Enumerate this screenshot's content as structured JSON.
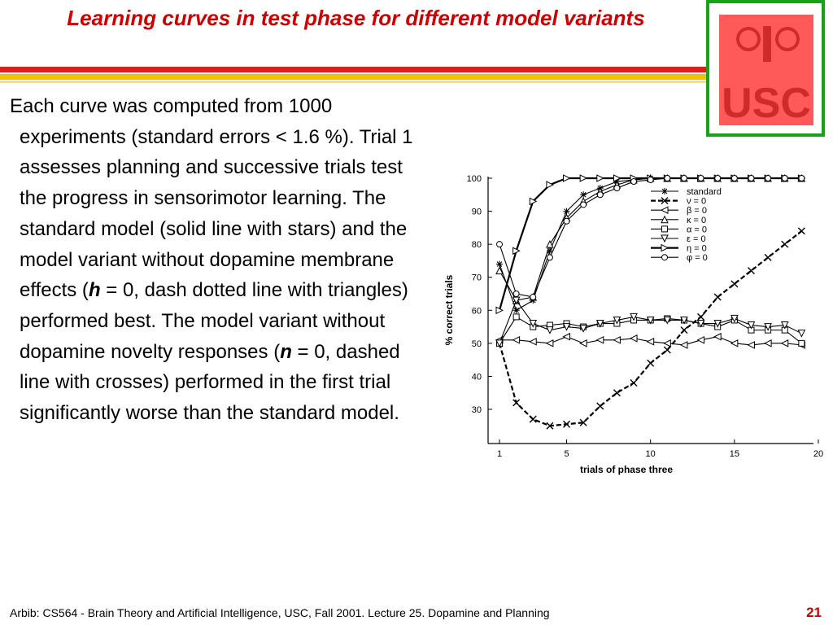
{
  "slide": {
    "title": "Learning curves in test phase for different model variants",
    "body_parts": [
      "Each curve was computed from 1000 experiments (standard errors < 1.6 %). Trial 1 assesses planning and successive trials test the progress in sensorimotor learning. The standard model (solid line with stars) and the model variant without dopamine membrane effects (",
      "h",
      " = 0, dash dotted line with triangles) performed best. The model variant without dopamine novelty responses (",
      "n",
      " = 0, dashed line with crosses) performed in the first trial significantly worse than the standard model."
    ],
    "footer": "Arbib: CS564 - Brain Theory and Artificial Intelligence,  USC, Fall 2001. Lecture 25. Dopamine and Planning",
    "page_number": "21",
    "logo_text": "USC",
    "colors": {
      "title": "#cc0000",
      "logo_border": "#1aa11a",
      "logo_fill": "#ff5a5a",
      "rule_top": "#e41b1b",
      "rule_bottom": "#f2c200"
    }
  },
  "chart_data": {
    "type": "line",
    "xlabel": "trials of phase three",
    "ylabel": "% correct trials",
    "xlim": [
      0,
      20
    ],
    "ylim": [
      20,
      100
    ],
    "xticks": [
      1,
      5,
      10,
      15,
      20
    ],
    "yticks": [
      30,
      40,
      50,
      60,
      70,
      80,
      90,
      100
    ],
    "grid": false,
    "legend_position": "top-right",
    "x": [
      1,
      2,
      3,
      4,
      5,
      6,
      7,
      8,
      9,
      10,
      11,
      12,
      13,
      14,
      15,
      16,
      17,
      18,
      19
    ],
    "series": [
      {
        "name": "standard",
        "marker": "star",
        "values": [
          74,
          60,
          63,
          78,
          90,
          95,
          97,
          99,
          99.5,
          100,
          100,
          100,
          100,
          100,
          100,
          100,
          100,
          100,
          100
        ]
      },
      {
        "name": "ν = 0",
        "marker": "cross",
        "values": [
          50,
          32,
          27,
          25,
          25.5,
          26,
          31,
          35,
          38,
          44,
          48,
          54,
          58,
          64,
          68,
          72,
          76,
          80,
          84
        ]
      },
      {
        "name": "β = 0",
        "marker": "tri-left",
        "values": [
          51,
          51,
          50.5,
          50,
          52,
          50,
          51,
          51,
          51.5,
          50.5,
          50,
          49.5,
          51,
          52,
          50,
          49.5,
          50,
          50,
          49.5
        ]
      },
      {
        "name": "κ = 0",
        "marker": "tri-up",
        "values": [
          72,
          63,
          64,
          80,
          88,
          93,
          96,
          98,
          99.5,
          100,
          100,
          100,
          100,
          100,
          100,
          100,
          100,
          100,
          100
        ]
      },
      {
        "name": "α = 0",
        "marker": "square",
        "values": [
          50,
          58,
          55,
          55.5,
          56,
          55,
          56,
          56,
          57,
          57,
          57.5,
          57,
          56,
          55,
          57,
          54,
          54,
          54,
          50
        ]
      },
      {
        "name": "ε = 0",
        "marker": "tri-down",
        "values": [
          50,
          63,
          56,
          54,
          55,
          54.5,
          56,
          57,
          58,
          57,
          57,
          57,
          56,
          56,
          57.5,
          55.5,
          55,
          55.5,
          53
        ]
      },
      {
        "name": "η = 0",
        "marker": "tri-right",
        "values": [
          60,
          78,
          93,
          98,
          100,
          100,
          100,
          100,
          100,
          100,
          100,
          100,
          100,
          100,
          100,
          100,
          100,
          100,
          100
        ]
      },
      {
        "name": "φ = 0",
        "marker": "circle",
        "values": [
          80,
          65,
          64,
          76,
          87,
          92,
          95,
          97,
          99,
          99.5,
          100,
          100,
          100,
          100,
          100,
          100,
          100,
          100,
          100
        ]
      }
    ]
  }
}
